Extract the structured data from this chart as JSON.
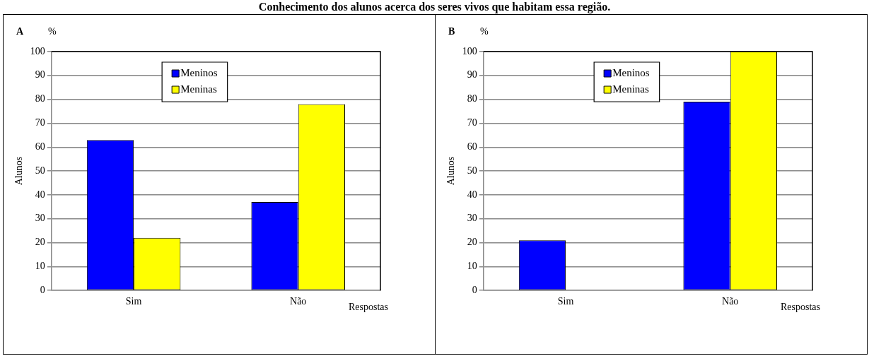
{
  "chart_data": [
    {
      "type": "bar",
      "title": "Conhecimento dos alunos acerca dos seres vivos que habitam essa região.",
      "annotations": [
        "A",
        "%"
      ],
      "ylabel": "Alunos",
      "xlabel": "Respostas",
      "categories": [
        "Sim",
        "Não"
      ],
      "series": [
        {
          "name": "Meninos",
          "color": "#0000ff",
          "values": [
            63,
            37
          ]
        },
        {
          "name": "Meninas",
          "color": "#ffff00",
          "values": [
            22,
            78
          ]
        }
      ],
      "ylim": [
        0,
        100
      ],
      "yticks": [
        0,
        10,
        20,
        30,
        40,
        50,
        60,
        70,
        80,
        90,
        100
      ],
      "grid": "y",
      "legend": "top"
    },
    {
      "type": "bar",
      "annotations": [
        "B",
        "%"
      ],
      "ylabel": "Alunos",
      "xlabel": "Respostas",
      "categories": [
        "Sim",
        "Não"
      ],
      "series": [
        {
          "name": "Meninos",
          "color": "#0000ff",
          "values": [
            21,
            79
          ]
        },
        {
          "name": "Meninas",
          "color": "#ffff00",
          "values": [
            0,
            100
          ]
        }
      ],
      "ylim": [
        0,
        100
      ],
      "yticks": [
        0,
        10,
        20,
        30,
        40,
        50,
        60,
        70,
        80,
        90,
        100
      ],
      "grid": "y",
      "legend": "top"
    }
  ]
}
